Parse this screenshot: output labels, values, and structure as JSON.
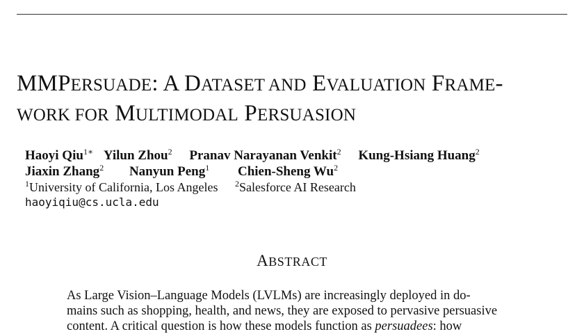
{
  "title": {
    "line1": {
      "a": "MMP",
      "b": "ERSUADE",
      "c": ": A D",
      "d": "ATASET AND",
      "e": " E",
      "f": "VALUATION",
      "g": " F",
      "h": "RAME",
      "i": "-"
    },
    "line2": {
      "a": "WORK FOR",
      "b": " M",
      "c": "ULTIMODAL",
      "d": " P",
      "e": "ERSUASION"
    }
  },
  "authors": [
    {
      "name": "Haoyi Qiu",
      "sup": "1∗"
    },
    {
      "name": "Yilun Zhou",
      "sup": "2"
    },
    {
      "name": "Pranav Narayanan Venkit",
      "sup": "2"
    },
    {
      "name": "Kung-Hsiang Huang",
      "sup": "2"
    },
    {
      "name": "Jiaxin Zhang",
      "sup": "2"
    },
    {
      "name": "Nanyun Peng",
      "sup": "1"
    },
    {
      "name": "Chien-Sheng Wu",
      "sup": "2"
    }
  ],
  "affiliations": [
    {
      "sup": "1",
      "name": "University of California, Los Angeles"
    },
    {
      "sup": "2",
      "name": "Salesforce AI Research"
    }
  ],
  "email": "haoyiqiu@cs.ucla.edu",
  "abstract": {
    "heading_initial": "A",
    "heading_rest": "BSTRACT",
    "lines": [
      "As Large Vision–Language Models (LVLMs) are increasingly deployed in do-",
      "mains such as shopping, health, and news, they are exposed to pervasive persuasive"
    ],
    "line3_start": "content. A critical question is how these models function as ",
    "line3_emph": "persuadees",
    "line3_end": ": how"
  }
}
